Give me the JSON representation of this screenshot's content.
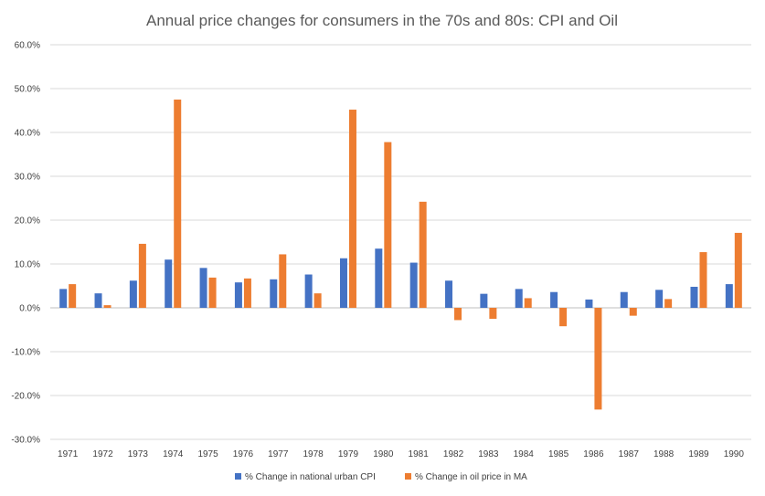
{
  "chart_data": {
    "type": "bar",
    "title": "Annual price changes for consumers in the 70s and 80s: CPI and Oil",
    "xlabel": "",
    "ylabel": "",
    "categories": [
      "1971",
      "1972",
      "1973",
      "1974",
      "1975",
      "1976",
      "1977",
      "1978",
      "1979",
      "1980",
      "1981",
      "1982",
      "1983",
      "1984",
      "1985",
      "1986",
      "1987",
      "1988",
      "1989",
      "1990"
    ],
    "series": [
      {
        "name": "% Change in national urban CPI",
        "color": "#4472c4",
        "values": [
          4.3,
          3.3,
          6.2,
          11.0,
          9.1,
          5.8,
          6.5,
          7.6,
          11.3,
          13.5,
          10.3,
          6.2,
          3.2,
          4.3,
          3.6,
          1.9,
          3.6,
          4.1,
          4.8,
          5.4
        ]
      },
      {
        "name": "% Change in oil price in MA",
        "color": "#ed7d31",
        "values": [
          5.4,
          0.6,
          14.6,
          47.5,
          6.9,
          6.7,
          12.2,
          3.3,
          45.2,
          37.8,
          24.2,
          -2.8,
          -2.5,
          2.2,
          -4.2,
          -23.2,
          -1.8,
          2.0,
          12.7,
          17.1
        ]
      }
    ],
    "ylim": [
      -30,
      60
    ],
    "yticks": [
      -30,
      -20,
      -10,
      0,
      10,
      20,
      30,
      40,
      50,
      60
    ],
    "ytick_labels": [
      "-30.0%",
      "-20.0%",
      "-10.0%",
      "0.0%",
      "10.0%",
      "20.0%",
      "30.0%",
      "40.0%",
      "50.0%",
      "60.0%"
    ],
    "grid": true,
    "legend_position": "bottom"
  }
}
